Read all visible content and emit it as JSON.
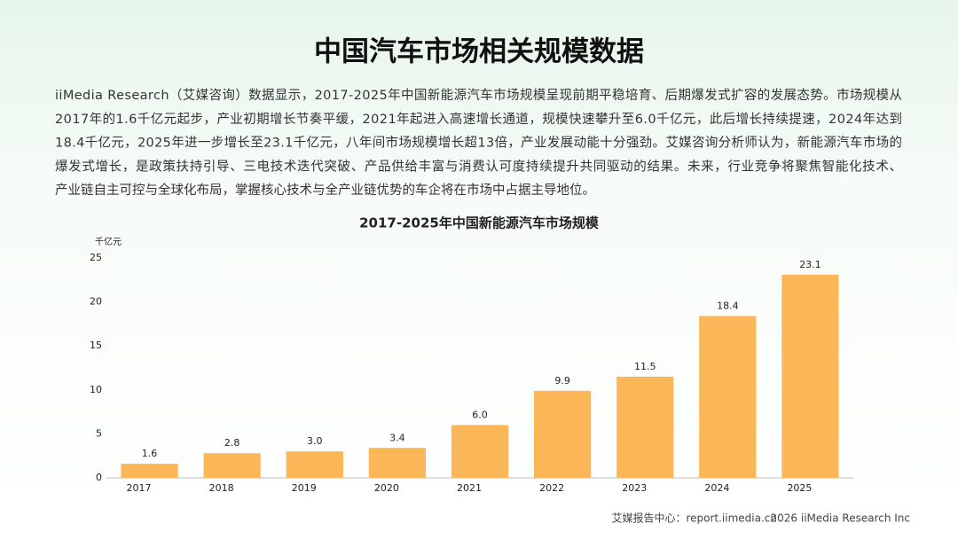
{
  "header": {
    "title": "中国汽车市场相关规模数据"
  },
  "paragraph": {
    "lines": [
      "iiMedia Research（艾媒咨询）数据显示，2017-2025年中国新能源汽车市场规模呈现前期平稳培育、后期爆发式扩容的发展态势。市场规模从",
      "2017年的1.6千亿元起步，产业初期增长节奏平缓，2021年起进入高速增长通道，规模快速攀升至6.0千亿元，此后增长持续提速，2024年达到",
      "18.4千亿元，2025年进一步增长至23.1千亿元，八年间市场规模增长超13倍，产业发展动能十分强劲。艾媒咨询分析师认为，新能源汽车市场的",
      "爆发式增长，是政策扶持引导、三电技术迭代突破、产品供给丰富与消费认可度持续提升共同驱动的结果。未来，行业竞争将聚焦智能化技术、",
      "产业链自主可控与全球化布局，掌握核心技术与全产业链优势的车企将在市场中占据主导地位。"
    ]
  },
  "chart_data": {
    "type": "bar",
    "title": "2017-2025年中国新能源汽车市场规模",
    "y_label": "千亿元",
    "categories": [
      "2017",
      "2018",
      "2019",
      "2020",
      "2021",
      "2022",
      "2023",
      "2024",
      "2025"
    ],
    "values": [
      1.6,
      2.8,
      3.0,
      3.4,
      6.0,
      9.9,
      11.5,
      18.4,
      23.1
    ],
    "value_labels": [
      "1.6",
      "2.8",
      "3.0",
      "3.4",
      "6.0",
      "9.9",
      "11.5",
      "18.4",
      "23.1"
    ],
    "color": "#fbb658",
    "ylim": [
      0,
      25
    ],
    "yticks": [
      0,
      5,
      10,
      15,
      20,
      25
    ],
    "grid": false
  },
  "footer": {
    "source": "艾媒报告中心：report.iimedia.cn",
    "copyright": "2026 iiMedia Research Inc"
  }
}
